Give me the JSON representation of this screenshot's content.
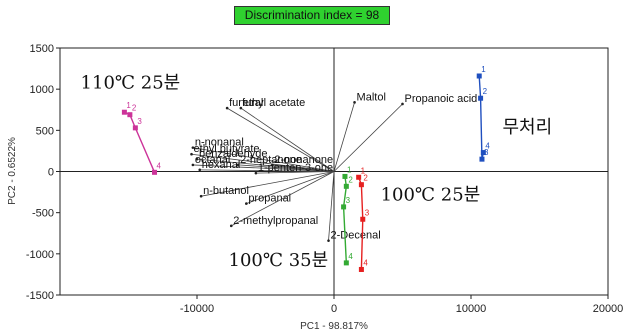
{
  "header": {
    "badge": "Discrimination index = 98"
  },
  "chart_data": {
    "type": "scatter",
    "title": "",
    "xlabel": "PC1 - 98.817%",
    "ylabel": "PC2 - 0.6522%",
    "xlim": [
      -20000,
      20000
    ],
    "ylim": [
      -1500,
      1500
    ],
    "xticks": [
      -10000,
      0,
      10000,
      20000
    ],
    "yticks": [
      -1500,
      -1000,
      -500,
      0,
      500,
      1000,
      1500
    ],
    "xtick_labels": [
      "-10000",
      "0",
      "10000",
      "20000"
    ],
    "ytick_labels": [
      "-1500",
      "-1000",
      "-500",
      "0",
      "500",
      "1000",
      "1500"
    ],
    "grid": false,
    "loadings": [
      {
        "label": "furfural",
        "x": -7800,
        "y": 770
      },
      {
        "label": "ethyl acetate",
        "x": -6800,
        "y": 770
      },
      {
        "label": "Maltol",
        "x": 1500,
        "y": 840
      },
      {
        "label": "Propanoic acid",
        "x": 5000,
        "y": 820
      },
      {
        "label": "n-nonanal",
        "x": -10300,
        "y": 290
      },
      {
        "label": "ethyl butyrate",
        "x": -10400,
        "y": 210
      },
      {
        "label": "benzaldehyde",
        "x": -10000,
        "y": 150
      },
      {
        "label": "octanal",
        "x": -10300,
        "y": 80
      },
      {
        "label": "hexanal",
        "x": -9800,
        "y": 20
      },
      {
        "label": "2-heptanone",
        "x": -7000,
        "y": 80
      },
      {
        "label": "2-nonanone",
        "x": -4500,
        "y": 80
      },
      {
        "label": "1-penten-3-one",
        "x": -5700,
        "y": -20
      },
      {
        "label": "n-butanol",
        "x": -9700,
        "y": -300
      },
      {
        "label": "propanal",
        "x": -6400,
        "y": -390
      },
      {
        "label": "2-methylpropanal",
        "x": -7500,
        "y": -660
      },
      {
        "label": "2-Decenal",
        "x": -400,
        "y": -840
      }
    ],
    "group_labels": [
      {
        "label": "110℃ 25분",
        "x": -18500,
        "y": 1010
      },
      {
        "label": "무처리",
        "x": 12300,
        "y": 470
      },
      {
        "label": "100℃ 25분",
        "x": 3400,
        "y": -350
      },
      {
        "label": "100℃ 35분",
        "x": -7700,
        "y": -1150
      }
    ],
    "series": [
      {
        "color": "#1f4fbf",
        "points": [
          {
            "n": "1",
            "x": 10600,
            "y": 1160
          },
          {
            "n": "2",
            "x": 10700,
            "y": 890
          },
          {
            "n": "3",
            "x": 10800,
            "y": 150
          },
          {
            "n": "4",
            "x": 10900,
            "y": 230
          }
        ]
      },
      {
        "color": "#cc3399",
        "points": [
          {
            "n": "1",
            "x": -15300,
            "y": 720
          },
          {
            "n": "2",
            "x": -14900,
            "y": 690
          },
          {
            "n": "3",
            "x": -14500,
            "y": 530
          },
          {
            "n": "4",
            "x": -13100,
            "y": -10
          }
        ]
      },
      {
        "color": "#33aa33",
        "points": [
          {
            "n": "1",
            "x": 800,
            "y": -60
          },
          {
            "n": "2",
            "x": 900,
            "y": -180
          },
          {
            "n": "3",
            "x": 700,
            "y": -430
          },
          {
            "n": "4",
            "x": 900,
            "y": -1110
          }
        ]
      },
      {
        "color": "#e62020",
        "points": [
          {
            "n": "1",
            "x": 1800,
            "y": -70
          },
          {
            "n": "2",
            "x": 2000,
            "y": -160
          },
          {
            "n": "3",
            "x": 2100,
            "y": -580
          },
          {
            "n": "4",
            "x": 2000,
            "y": -1190
          }
        ]
      }
    ]
  }
}
